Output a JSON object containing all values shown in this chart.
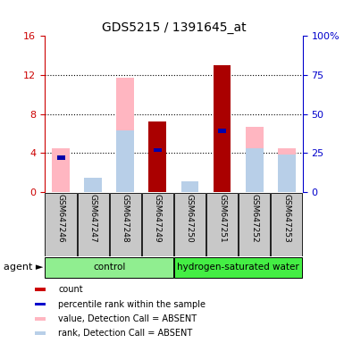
{
  "title": "GDS5215 / 1391645_at",
  "samples": [
    "GSM647246",
    "GSM647247",
    "GSM647248",
    "GSM647249",
    "GSM647250",
    "GSM647251",
    "GSM647252",
    "GSM647253"
  ],
  "ylim_left": [
    0,
    16
  ],
  "ylim_right": [
    0,
    100
  ],
  "yticks_left": [
    0,
    4,
    8,
    12,
    16
  ],
  "yticks_right": [
    0,
    25,
    50,
    75,
    100
  ],
  "yticklabels_right": [
    "0",
    "25",
    "50",
    "75",
    "100%"
  ],
  "absent_value_bars": [
    4.5,
    1.2,
    11.7,
    0.0,
    0.8,
    0.0,
    6.7,
    4.5
  ],
  "absent_rank_bars": [
    0.0,
    1.5,
    6.3,
    0.0,
    1.1,
    0.0,
    4.5,
    3.8
  ],
  "present_count_bars": [
    0.0,
    0.0,
    0.0,
    7.2,
    0.0,
    13.0,
    0.0,
    0.0
  ],
  "present_rank_bars": [
    3.5,
    0.0,
    0.0,
    4.3,
    0.0,
    6.3,
    0.0,
    0.0
  ],
  "color_absent_value": "#FFB6C1",
  "color_absent_rank": "#B8CFE8",
  "color_present_count": "#AA0000",
  "color_present_rank": "#0000AA",
  "left_axis_color": "#CC0000",
  "right_axis_color": "#0000CC",
  "bar_width": 0.55,
  "group_extents": [
    {
      "label": "control",
      "start": 0,
      "end": 3,
      "color": "#90EE90"
    },
    {
      "label": "hydrogen-saturated water",
      "start": 4,
      "end": 7,
      "color": "#44EE44"
    }
  ],
  "legend_items": [
    {
      "label": "count",
      "color": "#CC0000"
    },
    {
      "label": "percentile rank within the sample",
      "color": "#0000CC"
    },
    {
      "label": "value, Detection Call = ABSENT",
      "color": "#FFB6C1"
    },
    {
      "label": "rank, Detection Call = ABSENT",
      "color": "#B8CFE8"
    }
  ]
}
